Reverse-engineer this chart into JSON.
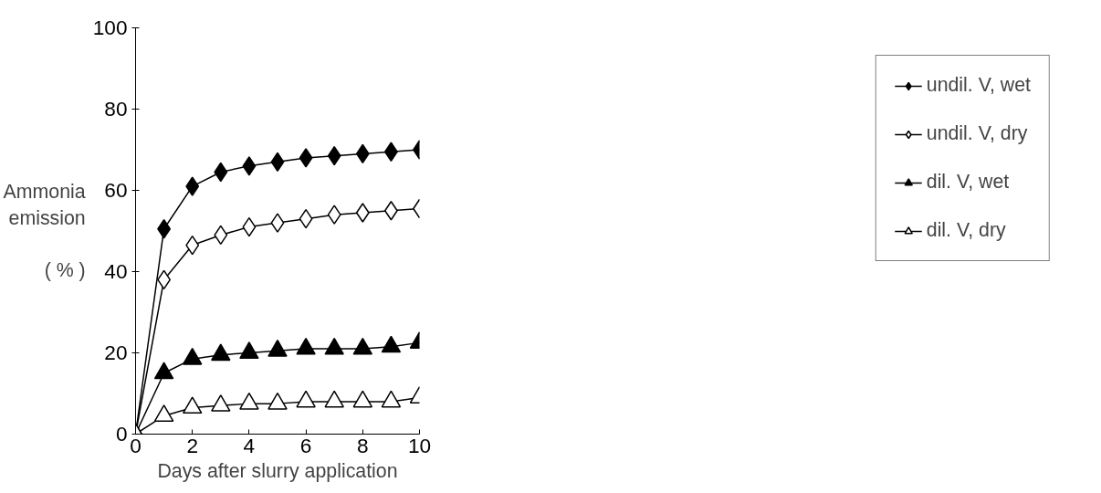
{
  "chart_data": {
    "type": "line",
    "xlabel": "Days after slurry application",
    "ylabel": "Ammonia\nemission\n\n( % )",
    "x": [
      0,
      1,
      2,
      3,
      4,
      5,
      6,
      7,
      8,
      9,
      10
    ],
    "xlim": [
      0,
      10
    ],
    "xticks": [
      0,
      2,
      4,
      6,
      8,
      10
    ],
    "ylim": [
      0,
      100
    ],
    "yticks": [
      0,
      20,
      40,
      60,
      80,
      100
    ],
    "grid": false,
    "legend": "right",
    "series": [
      {
        "name": "undil. V, wet",
        "color": "#000000",
        "marker": "diamond",
        "values": [
          0,
          50.5,
          61,
          64.5,
          66,
          67,
          68,
          68.5,
          69,
          69.5,
          70
        ]
      },
      {
        "name": "undil. V, dry",
        "color": "#ffffff",
        "marker": "diamond",
        "values": [
          0,
          38,
          46.5,
          49,
          51,
          52,
          53,
          54,
          54.5,
          55,
          55.5
        ]
      },
      {
        "name": "dil. V, wet",
        "color": "#000000",
        "marker": "triangle",
        "values": [
          0,
          15,
          18.5,
          19.5,
          20,
          20.5,
          21,
          21,
          21,
          21.5,
          22.5
        ]
      },
      {
        "name": "dil. V, dry",
        "color": "#ffffff",
        "marker": "triangle",
        "values": [
          0,
          4.5,
          6.5,
          7,
          7.5,
          7.5,
          8,
          8,
          8,
          8,
          9
        ]
      }
    ]
  }
}
